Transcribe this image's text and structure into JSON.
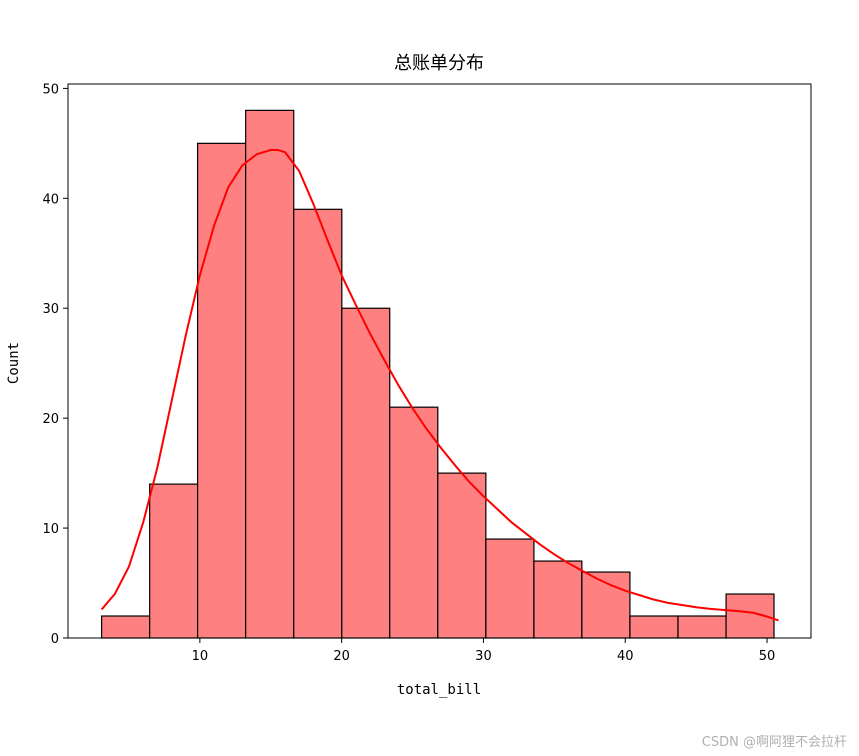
{
  "chart_data": {
    "type": "bar",
    "subtype": "histogram",
    "title": "总账单分布",
    "xlabel": "total_bill",
    "ylabel": "Count",
    "xlim": [
      0.7,
      53.1
    ],
    "ylim": [
      0,
      50.4
    ],
    "xticks": [
      10,
      20,
      30,
      40,
      50
    ],
    "yticks": [
      0,
      10,
      20,
      30,
      40,
      50
    ],
    "bins": [
      {
        "start": 3.07,
        "end": 6.46,
        "count": 2
      },
      {
        "start": 6.46,
        "end": 9.84,
        "count": 14
      },
      {
        "start": 9.84,
        "end": 13.23,
        "count": 45
      },
      {
        "start": 13.23,
        "end": 16.62,
        "count": 48
      },
      {
        "start": 16.62,
        "end": 20.01,
        "count": 39
      },
      {
        "start": 20.01,
        "end": 23.39,
        "count": 30
      },
      {
        "start": 23.39,
        "end": 26.78,
        "count": 21
      },
      {
        "start": 26.78,
        "end": 30.17,
        "count": 15
      },
      {
        "start": 30.17,
        "end": 33.56,
        "count": 9
      },
      {
        "start": 33.56,
        "end": 36.94,
        "count": 7
      },
      {
        "start": 36.94,
        "end": 40.33,
        "count": 6
      },
      {
        "start": 40.33,
        "end": 43.72,
        "count": 2
      },
      {
        "start": 43.72,
        "end": 47.11,
        "count": 2
      },
      {
        "start": 47.11,
        "end": 50.49,
        "count": 4
      }
    ],
    "kde": {
      "x": [
        3.07,
        4,
        5,
        6,
        7,
        8,
        9,
        10,
        11,
        12,
        13,
        14,
        15,
        15.5,
        16,
        17,
        18,
        19,
        20,
        21,
        22,
        23,
        24,
        25,
        26,
        27,
        28,
        29,
        30,
        31,
        32,
        33,
        34,
        35,
        36,
        37,
        38,
        39,
        40,
        41,
        42,
        43,
        44,
        45,
        46,
        47,
        48,
        49,
        50,
        50.81
      ],
      "y": [
        2.6,
        4.0,
        6.5,
        10.5,
        15.5,
        21.5,
        27.5,
        33.0,
        37.5,
        41.0,
        43.0,
        44.0,
        44.4,
        44.4,
        44.2,
        42.5,
        39.5,
        36.2,
        33.0,
        30.3,
        27.7,
        25.3,
        23.0,
        20.9,
        19.0,
        17.3,
        15.7,
        14.2,
        12.9,
        11.7,
        10.5,
        9.5,
        8.5,
        7.6,
        6.8,
        6.1,
        5.4,
        4.8,
        4.3,
        3.9,
        3.5,
        3.2,
        3.0,
        2.8,
        2.65,
        2.55,
        2.45,
        2.3,
        1.95,
        1.6
      ]
    },
    "grid": false,
    "colors": {
      "bar_fill": "#ff8080",
      "bar_edge": "#000000",
      "kde_line": "#ff0000"
    }
  },
  "watermark": "CSDN @啊阿狸不会拉杆"
}
